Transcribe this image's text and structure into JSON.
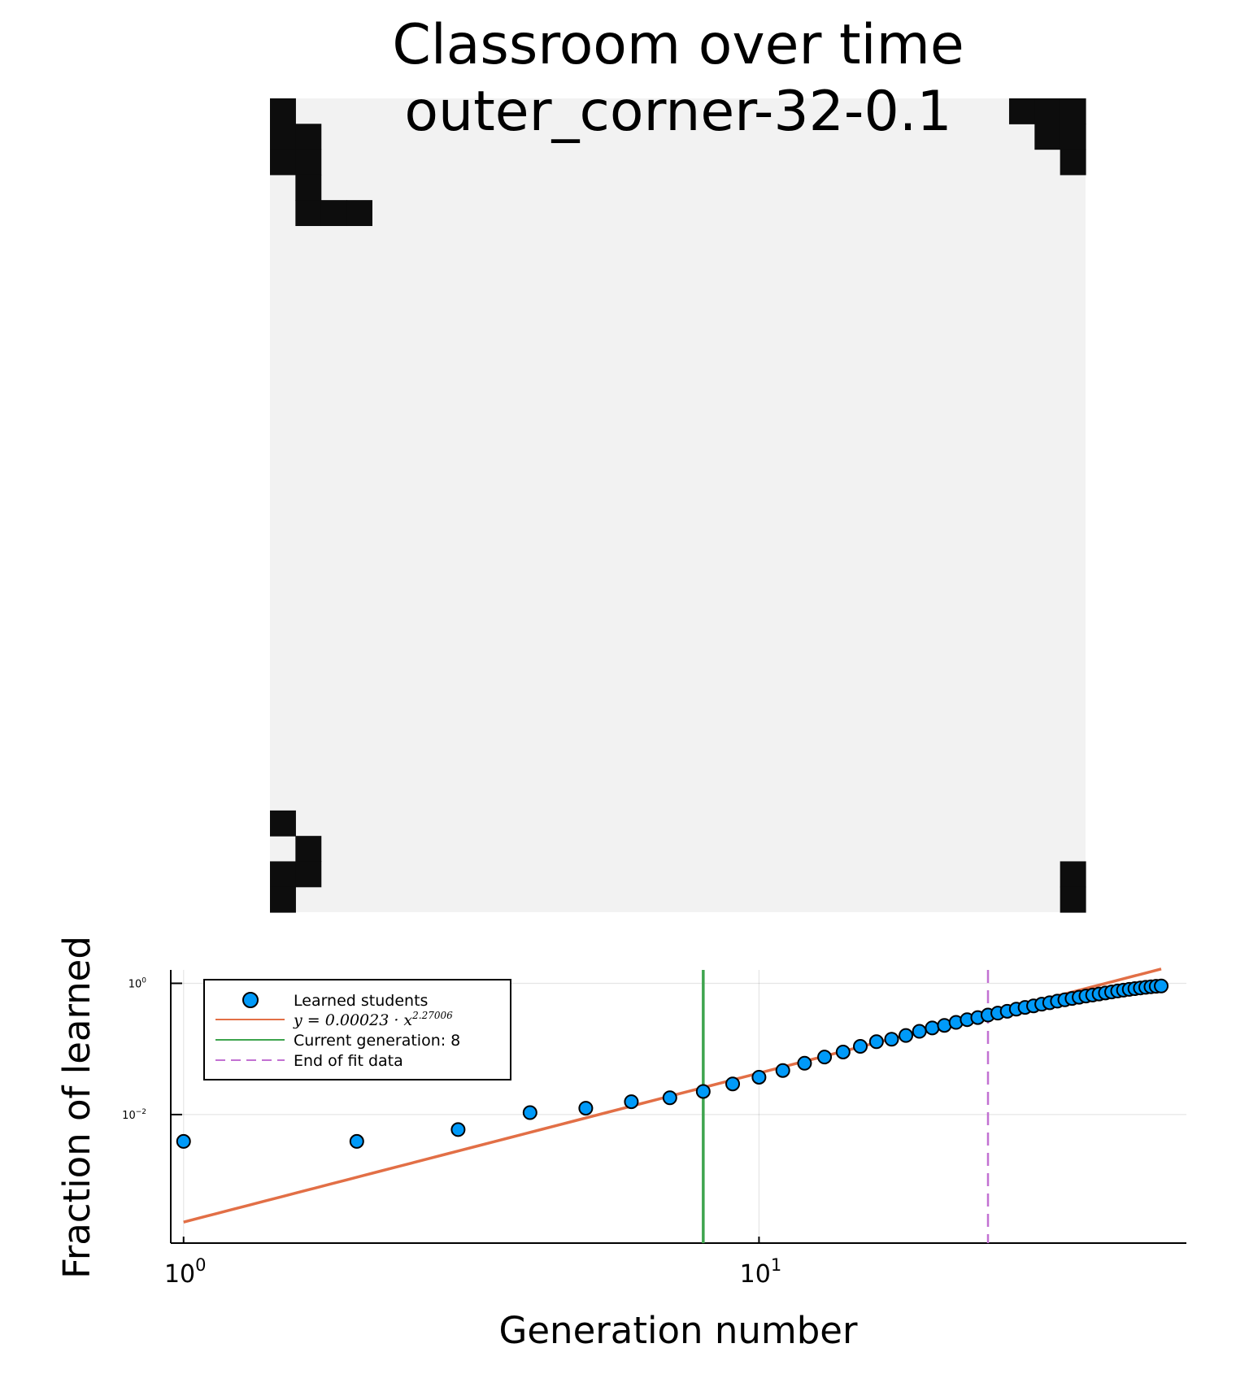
{
  "title_line1": "Classroom over time",
  "title_line2": "outer_corner-32-0.1",
  "classroom": {
    "grid_size": 32,
    "background_color": "#f2f2f2",
    "learned_color": "#0d0d0d",
    "learned_cells": [
      [
        0,
        0
      ],
      [
        0,
        1
      ],
      [
        1,
        1
      ],
      [
        0,
        2
      ],
      [
        1,
        2
      ],
      [
        1,
        3
      ],
      [
        1,
        4
      ],
      [
        2,
        4
      ],
      [
        3,
        4
      ],
      [
        29,
        0
      ],
      [
        30,
        0
      ],
      [
        31,
        0
      ],
      [
        30,
        1
      ],
      [
        31,
        1
      ],
      [
        31,
        2
      ],
      [
        0,
        28
      ],
      [
        1,
        29
      ],
      [
        1,
        30
      ],
      [
        0,
        30
      ],
      [
        0,
        31
      ],
      [
        31,
        30
      ],
      [
        31,
        31
      ]
    ]
  },
  "chart_data": {
    "type": "scatter",
    "xlabel": "Generation number",
    "ylabel": "Fraction of learned",
    "xscale": "log10",
    "yscale": "log10",
    "xlim": [
      0.95,
      55.3
    ],
    "ylim": [
      0.00011,
      1.6
    ],
    "xticks": [
      {
        "value": 1,
        "base": "10",
        "exp": "0"
      },
      {
        "value": 10,
        "base": "10",
        "exp": "1"
      }
    ],
    "yticks": [
      {
        "value": 1,
        "base": "10",
        "exp": "0"
      },
      {
        "value": 0.01,
        "base": "10",
        "exp": "−2"
      }
    ],
    "grid": true,
    "legend_position": "top-left",
    "series": [
      {
        "name": "Learned students",
        "kind": "scatter",
        "color": "#009af9",
        "x": [
          1,
          2,
          3,
          4,
          5,
          6,
          7,
          8,
          9,
          10,
          11,
          12,
          13,
          14,
          15,
          16,
          17,
          18,
          19,
          20,
          21,
          22,
          23,
          24,
          25,
          26,
          27,
          28,
          29,
          30,
          31,
          32,
          33,
          34,
          35,
          36,
          37,
          38,
          39,
          40,
          41,
          42,
          43,
          44,
          45,
          46,
          47,
          48,
          49,
          50
        ],
        "y": [
          0.0039,
          0.0039,
          0.0059,
          0.0107,
          0.0125,
          0.0157,
          0.018,
          0.0225,
          0.0293,
          0.0371,
          0.0469,
          0.0605,
          0.0752,
          0.0898,
          0.1094,
          0.1289,
          0.1406,
          0.1602,
          0.1855,
          0.209,
          0.2285,
          0.2539,
          0.2793,
          0.3008,
          0.3281,
          0.3516,
          0.375,
          0.4043,
          0.4297,
          0.4531,
          0.4805,
          0.5059,
          0.5352,
          0.5605,
          0.5879,
          0.6133,
          0.6406,
          0.6621,
          0.6875,
          0.7129,
          0.7383,
          0.7637,
          0.7871,
          0.8086,
          0.8301,
          0.8496,
          0.8691,
          0.8867,
          0.9004,
          0.9102
        ]
      },
      {
        "name": "y = 0.00023 · x^2.27006",
        "name_base": "y = 0.00023 · x",
        "name_exp": "2.27006",
        "kind": "fit",
        "color": "#e26f46",
        "coef": 0.00023,
        "power": 2.27006,
        "x_range": [
          1,
          50
        ]
      },
      {
        "name": "Current generation: 8",
        "kind": "vline",
        "color": "#3ea44e",
        "x": 8
      },
      {
        "name": "End of fit data",
        "kind": "vline",
        "dashed": true,
        "color": "#c271d2",
        "x": 25
      }
    ]
  }
}
